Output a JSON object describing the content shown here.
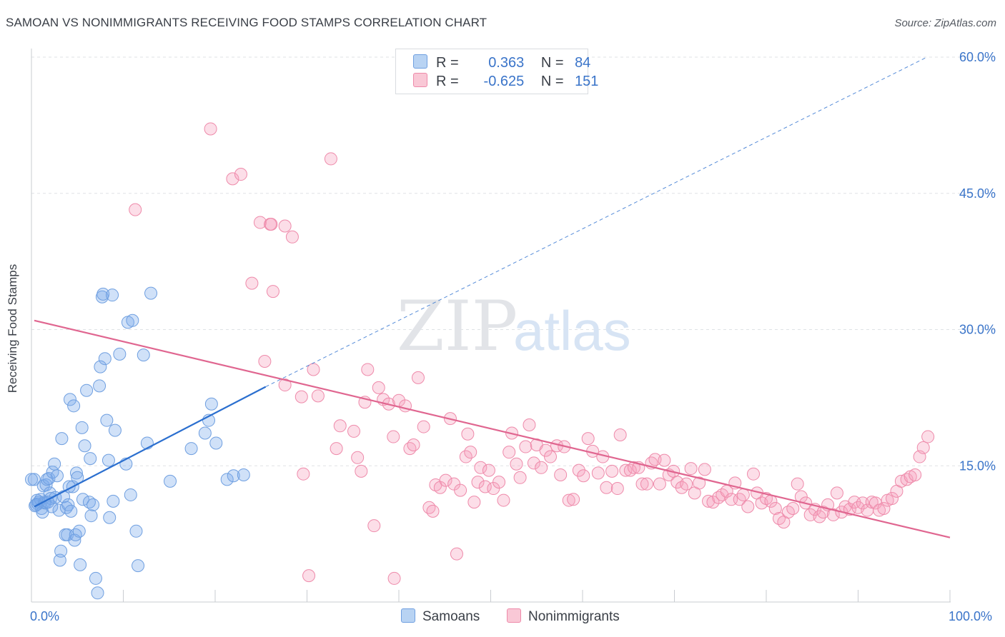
{
  "title": "SAMOAN VS NONIMMIGRANTS RECEIVING FOOD STAMPS CORRELATION CHART",
  "source": "Source: ZipAtlas.com",
  "watermark": {
    "zip": "ZIP",
    "atlas": "atlas"
  },
  "legend_stats": [
    {
      "r_label": "R =",
      "r_value": "0.363",
      "n_label": "N =",
      "n_value": "84",
      "color": "#b8d3f3",
      "border": "#6f9fe0"
    },
    {
      "r_label": "R =",
      "r_value": "-0.625",
      "n_label": "N =",
      "n_value": "151",
      "color": "#f9c8d6",
      "border": "#ee8aaa"
    }
  ],
  "bottom_legend": [
    {
      "label": "Samoans",
      "color": "#b8d3f3",
      "border": "#6f9fe0"
    },
    {
      "label": "Nonimmigrants",
      "color": "#f9c8d6",
      "border": "#ee8aaa"
    }
  ],
  "colors": {
    "blue_line": "#2b6fcf",
    "pink_line": "#e06690",
    "blue_fill": "rgba(120,170,235,0.35)",
    "blue_stroke": "#6f9fe0",
    "pink_fill": "rgba(245,160,188,0.35)",
    "pink_stroke": "#ee8aaa",
    "tick_text": "#3a74c9"
  },
  "chart_data": {
    "type": "scatter",
    "title": "SAMOAN VS NONIMMIGRANTS RECEIVING FOOD STAMPS CORRELATION CHART",
    "xlabel": "",
    "ylabel": "Receiving Food Stamps",
    "xlim": [
      0,
      100
    ],
    "ylim": [
      0,
      60
    ],
    "x_tick_labels": [
      "0.0%",
      "100.0%"
    ],
    "y_ticks": [
      15,
      30,
      45,
      60
    ],
    "y_tick_labels": [
      "15.0%",
      "30.0%",
      "45.0%",
      "60.0%"
    ],
    "grid": "horizontal dashed",
    "legend_position": "top-center",
    "series": [
      {
        "name": "Samoans",
        "r": 0.363,
        "n": 84,
        "trend": {
          "x": [
            0,
            25.5
          ],
          "y": [
            10.5,
            23.7
          ]
        },
        "trend_extension": {
          "x": [
            25.5,
            97.5
          ],
          "y": [
            23.7,
            60.0
          ]
        },
        "points": [
          [
            0.3,
            13.5
          ],
          [
            0.4,
            10.6
          ],
          [
            0.6,
            11.2
          ],
          [
            0.7,
            10.8
          ],
          [
            0.8,
            11.0
          ],
          [
            1.0,
            11.3
          ],
          [
            1.1,
            10.3
          ],
          [
            1.2,
            9.9
          ],
          [
            1.3,
            12.8
          ],
          [
            1.4,
            11.0
          ],
          [
            1.5,
            10.9
          ],
          [
            1.6,
            12.9
          ],
          [
            1.7,
            13.5
          ],
          [
            1.9,
            13.6
          ],
          [
            2.0,
            12.0
          ],
          [
            2.1,
            11.4
          ],
          [
            2.2,
            10.5
          ],
          [
            2.3,
            14.3
          ],
          [
            2.5,
            15.2
          ],
          [
            2.6,
            11.5
          ],
          [
            2.8,
            13.9
          ],
          [
            3.0,
            10.1
          ],
          [
            3.1,
            4.6
          ],
          [
            3.2,
            5.6
          ],
          [
            3.3,
            18.0
          ],
          [
            3.5,
            11.6
          ],
          [
            3.7,
            7.4
          ],
          [
            3.8,
            10.4
          ],
          [
            3.9,
            7.4
          ],
          [
            4.0,
            10.7
          ],
          [
            4.1,
            12.7
          ],
          [
            4.2,
            22.3
          ],
          [
            4.3,
            10.0
          ],
          [
            4.5,
            12.7
          ],
          [
            4.6,
            21.6
          ],
          [
            4.7,
            6.8
          ],
          [
            4.8,
            7.4
          ],
          [
            4.9,
            14.2
          ],
          [
            5.0,
            13.7
          ],
          [
            5.2,
            7.8
          ],
          [
            5.3,
            4.1
          ],
          [
            5.5,
            19.2
          ],
          [
            5.6,
            11.3
          ],
          [
            5.8,
            17.2
          ],
          [
            6.0,
            23.3
          ],
          [
            6.3,
            11.0
          ],
          [
            6.4,
            15.8
          ],
          [
            6.5,
            9.5
          ],
          [
            6.7,
            10.7
          ],
          [
            7.0,
            2.6
          ],
          [
            7.2,
            1.0
          ],
          [
            7.4,
            23.8
          ],
          [
            7.5,
            25.9
          ],
          [
            7.7,
            33.6
          ],
          [
            7.8,
            33.9
          ],
          [
            8.0,
            26.8
          ],
          [
            8.2,
            20.0
          ],
          [
            8.4,
            15.6
          ],
          [
            8.5,
            9.3
          ],
          [
            8.8,
            33.8
          ],
          [
            8.9,
            11.1
          ],
          [
            9.1,
            18.9
          ],
          [
            9.6,
            27.3
          ],
          [
            10.3,
            15.2
          ],
          [
            10.5,
            30.8
          ],
          [
            10.8,
            11.8
          ],
          [
            11.0,
            31.0
          ],
          [
            11.4,
            7.8
          ],
          [
            11.6,
            4.0
          ],
          [
            12.2,
            27.2
          ],
          [
            12.6,
            17.5
          ],
          [
            13.0,
            34.0
          ],
          [
            15.1,
            13.3
          ],
          [
            17.4,
            16.9
          ],
          [
            18.9,
            18.6
          ],
          [
            19.3,
            20.0
          ],
          [
            19.6,
            21.8
          ],
          [
            20.1,
            17.5
          ],
          [
            21.3,
            13.5
          ],
          [
            22.0,
            13.9
          ],
          [
            23.1,
            14.0
          ],
          [
            0.0,
            13.5
          ],
          [
            0.5,
            10.7
          ],
          [
            1.8,
            11.0
          ]
        ]
      },
      {
        "name": "Nonimmigrants",
        "r": -0.625,
        "n": 151,
        "trend": {
          "x": [
            0,
            100
          ],
          "y": [
            31.0,
            7.1
          ]
        },
        "points": [
          [
            11.3,
            43.2
          ],
          [
            19.5,
            52.1
          ],
          [
            21.9,
            46.6
          ],
          [
            22.8,
            47.1
          ],
          [
            24.0,
            35.1
          ],
          [
            24.9,
            41.8
          ],
          [
            25.4,
            26.5
          ],
          [
            26.0,
            41.6
          ],
          [
            26.1,
            41.6
          ],
          [
            26.3,
            34.2
          ],
          [
            27.6,
            41.4
          ],
          [
            27.6,
            23.9
          ],
          [
            28.4,
            40.2
          ],
          [
            29.4,
            22.6
          ],
          [
            29.6,
            14.1
          ],
          [
            30.2,
            2.9
          ],
          [
            30.7,
            25.6
          ],
          [
            31.2,
            22.7
          ],
          [
            32.6,
            48.8
          ],
          [
            33.2,
            16.9
          ],
          [
            33.6,
            19.4
          ],
          [
            35.1,
            18.8
          ],
          [
            35.5,
            15.9
          ],
          [
            35.9,
            14.4
          ],
          [
            36.3,
            22.0
          ],
          [
            36.6,
            25.6
          ],
          [
            37.3,
            8.4
          ],
          [
            37.8,
            23.6
          ],
          [
            38.3,
            22.3
          ],
          [
            38.9,
            21.8
          ],
          [
            39.4,
            18.2
          ],
          [
            39.5,
            2.6
          ],
          [
            40.0,
            22.2
          ],
          [
            40.7,
            21.6
          ],
          [
            41.2,
            16.9
          ],
          [
            41.6,
            17.3
          ],
          [
            42.1,
            24.7
          ],
          [
            42.7,
            19.3
          ],
          [
            43.3,
            10.4
          ],
          [
            43.7,
            10.0
          ],
          [
            44.0,
            12.9
          ],
          [
            44.5,
            12.6
          ],
          [
            45.1,
            13.4
          ],
          [
            45.6,
            20.2
          ],
          [
            46.0,
            13.0
          ],
          [
            46.3,
            5.3
          ],
          [
            46.7,
            12.3
          ],
          [
            47.3,
            16.0
          ],
          [
            47.5,
            18.5
          ],
          [
            47.8,
            16.5
          ],
          [
            48.2,
            11.0
          ],
          [
            48.6,
            13.2
          ],
          [
            48.9,
            14.8
          ],
          [
            49.4,
            12.7
          ],
          [
            49.8,
            14.5
          ],
          [
            50.3,
            12.5
          ],
          [
            50.9,
            13.2
          ],
          [
            51.4,
            11.2
          ],
          [
            52.0,
            16.5
          ],
          [
            52.3,
            18.6
          ],
          [
            52.8,
            15.2
          ],
          [
            53.2,
            13.7
          ],
          [
            53.8,
            17.1
          ],
          [
            54.2,
            19.5
          ],
          [
            54.7,
            15.3
          ],
          [
            55.0,
            17.3
          ],
          [
            55.5,
            14.8
          ],
          [
            56.0,
            16.7
          ],
          [
            56.5,
            16.0
          ],
          [
            57.2,
            17.2
          ],
          [
            57.6,
            14.0
          ],
          [
            58.0,
            17.1
          ],
          [
            58.5,
            11.2
          ],
          [
            59.0,
            11.3
          ],
          [
            59.6,
            14.5
          ],
          [
            60.1,
            13.9
          ],
          [
            60.6,
            18.0
          ],
          [
            61.1,
            16.6
          ],
          [
            61.7,
            14.2
          ],
          [
            62.2,
            16.0
          ],
          [
            62.6,
            12.6
          ],
          [
            63.2,
            14.4
          ],
          [
            63.8,
            12.5
          ],
          [
            64.1,
            18.4
          ],
          [
            64.7,
            14.5
          ],
          [
            65.2,
            14.5
          ],
          [
            65.6,
            14.8
          ],
          [
            66.1,
            14.8
          ],
          [
            66.5,
            13.0
          ],
          [
            67.0,
            13.0
          ],
          [
            67.5,
            15.3
          ],
          [
            67.9,
            15.7
          ],
          [
            68.4,
            13.0
          ],
          [
            68.9,
            15.6
          ],
          [
            69.4,
            14.0
          ],
          [
            69.9,
            14.4
          ],
          [
            70.3,
            13.2
          ],
          [
            70.8,
            12.6
          ],
          [
            71.3,
            13.0
          ],
          [
            71.8,
            14.7
          ],
          [
            72.2,
            12.0
          ],
          [
            72.7,
            13.1
          ],
          [
            73.3,
            14.6
          ],
          [
            73.7,
            11.1
          ],
          [
            74.2,
            11.0
          ],
          [
            74.8,
            11.5
          ],
          [
            75.2,
            11.8
          ],
          [
            75.7,
            12.2
          ],
          [
            76.2,
            11.3
          ],
          [
            76.6,
            13.1
          ],
          [
            77.1,
            11.3
          ],
          [
            77.5,
            11.8
          ],
          [
            78.0,
            10.5
          ],
          [
            78.6,
            14.1
          ],
          [
            79.0,
            12.0
          ],
          [
            79.5,
            10.9
          ],
          [
            80.0,
            11.4
          ],
          [
            80.5,
            11.1
          ],
          [
            81.0,
            10.3
          ],
          [
            81.4,
            9.2
          ],
          [
            81.9,
            8.8
          ],
          [
            82.4,
            9.9
          ],
          [
            82.9,
            10.3
          ],
          [
            83.4,
            13.0
          ],
          [
            83.8,
            11.6
          ],
          [
            84.3,
            10.9
          ],
          [
            84.8,
            9.6
          ],
          [
            85.3,
            10.2
          ],
          [
            85.8,
            9.4
          ],
          [
            86.2,
            9.9
          ],
          [
            86.7,
            10.7
          ],
          [
            87.3,
            9.6
          ],
          [
            87.7,
            12.0
          ],
          [
            88.2,
            9.9
          ],
          [
            88.6,
            10.5
          ],
          [
            89.1,
            10.2
          ],
          [
            89.6,
            11.0
          ],
          [
            90.0,
            10.4
          ],
          [
            90.5,
            10.9
          ],
          [
            91.0,
            10.1
          ],
          [
            91.5,
            11.0
          ],
          [
            91.9,
            10.9
          ],
          [
            92.3,
            10.1
          ],
          [
            92.8,
            10.3
          ],
          [
            93.2,
            11.2
          ],
          [
            93.7,
            11.4
          ],
          [
            94.2,
            12.2
          ],
          [
            94.7,
            13.3
          ],
          [
            95.3,
            13.5
          ],
          [
            95.7,
            13.8
          ],
          [
            96.2,
            14.0
          ],
          [
            96.7,
            16.0
          ],
          [
            97.1,
            17.0
          ],
          [
            97.6,
            18.2
          ]
        ]
      }
    ]
  }
}
